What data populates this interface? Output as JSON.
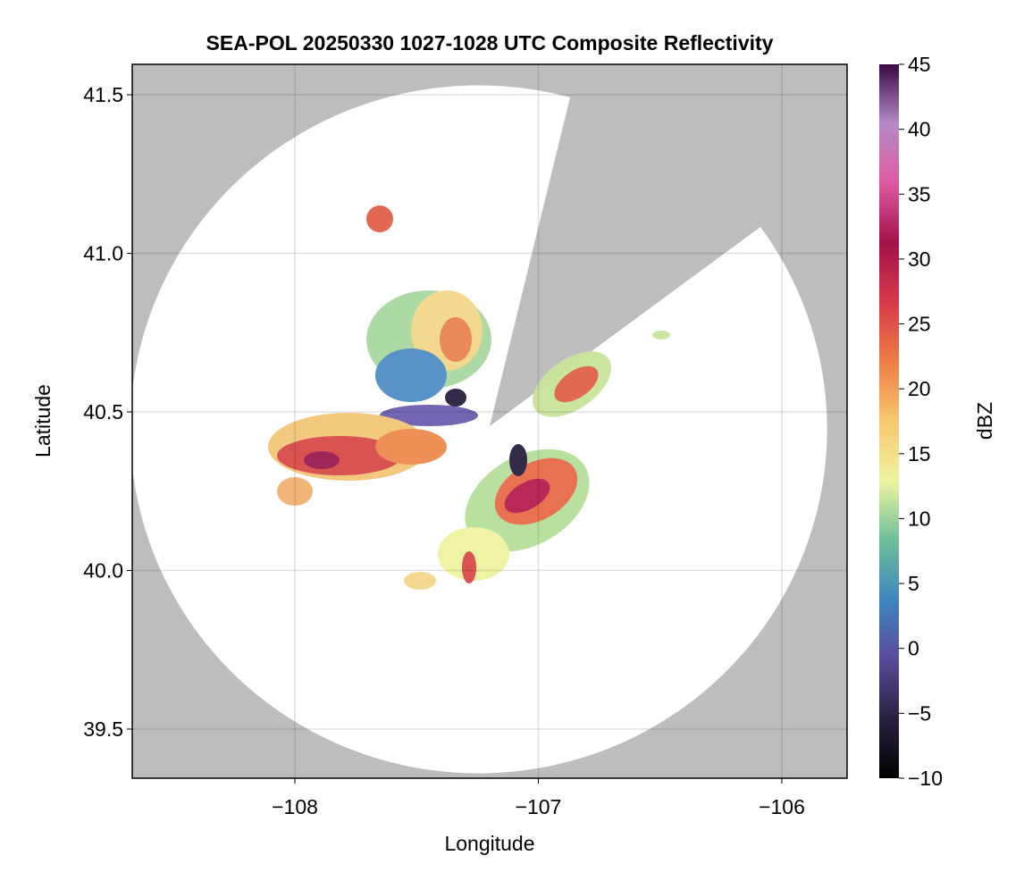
{
  "chart_data": {
    "type": "radar-map",
    "title": "SEA-POL 20250330 1027-1028 UTC Composite Reflectivity",
    "x_label": "Longitude",
    "y_label": "Latitude",
    "xlim": [
      -108.668,
      -105.732
    ],
    "ylim": [
      39.345,
      41.596
    ],
    "xticks": [
      {
        "value": -108,
        "label": "−108"
      },
      {
        "value": -107,
        "label": "−107"
      },
      {
        "value": -106,
        "label": "−106"
      }
    ],
    "yticks": [
      {
        "value": 39.5,
        "label": "39.5"
      },
      {
        "value": 40.0,
        "label": "40.0"
      },
      {
        "value": 40.5,
        "label": "40.5"
      },
      {
        "value": 41.0,
        "label": "41.0"
      },
      {
        "value": 41.5,
        "label": "41.5"
      }
    ],
    "grid": true,
    "background_color": "#bdbdbd",
    "colorbar": {
      "label": "dBZ",
      "lim": [
        -10,
        45
      ],
      "ticks": [
        {
          "value": -10,
          "label": "−10"
        },
        {
          "value": -5,
          "label": "−5"
        },
        0,
        5,
        10,
        15,
        20,
        25,
        30,
        35,
        40,
        45
      ],
      "colors": [
        "#000000",
        "#2a2040",
        "#5a4a9a",
        "#3f86c0",
        "#6cbf9a",
        "#eef4a0",
        "#f7c86e",
        "#ee7d45",
        "#d63a48",
        "#a3124a",
        "#e05aa0",
        "#b58ac6",
        "#3b0a45"
      ]
    }
  }
}
